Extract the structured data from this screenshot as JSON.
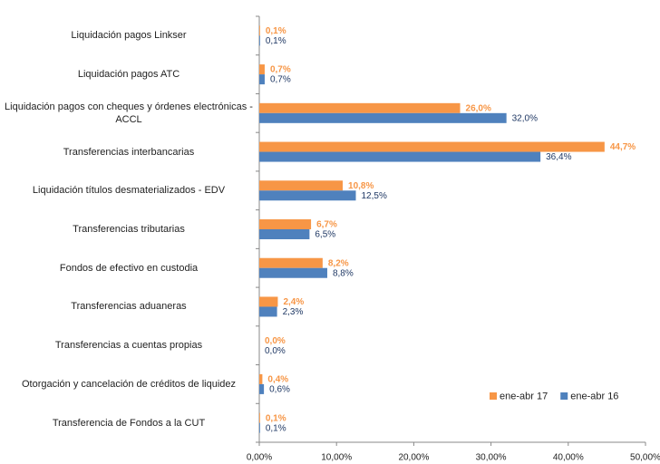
{
  "chart_data": {
    "type": "bar",
    "orientation": "horizontal",
    "categories": [
      "Liquidación pagos Linkser",
      "Liquidación pagos ATC",
      "Liquidación pagos con cheques y órdenes electrónicas - ACCL",
      "Transferencias interbancarias",
      "Liquidación títulos desmaterializados - EDV",
      "Transferencias tributarias",
      "Fondos de efectivo en custodia",
      "Transferencias aduaneras",
      "Transferencias a cuentas propias",
      "Otorgación y cancelación de créditos de liquidez",
      "Transferencia de Fondos a la CUT"
    ],
    "series": [
      {
        "name": "ene-abr 17",
        "color": "#f79646",
        "label_color": "#f79646",
        "values": [
          0.1,
          0.7,
          26.0,
          44.7,
          10.8,
          6.7,
          8.2,
          2.4,
          0.0,
          0.4,
          0.1
        ],
        "value_labels": [
          "0,1%",
          "0,7%",
          "26,0%",
          "44,7%",
          "10,8%",
          "6,7%",
          "8,2%",
          "2,4%",
          "0,0%",
          "0,4%",
          "0,1%"
        ]
      },
      {
        "name": "ene-abr 16",
        "color": "#4f81bd",
        "label_color": "#1f3864",
        "values": [
          0.1,
          0.7,
          32.0,
          36.4,
          12.5,
          6.5,
          8.8,
          2.3,
          0.0,
          0.6,
          0.1
        ],
        "value_labels": [
          "0,1%",
          "0,7%",
          "32,0%",
          "36,4%",
          "12,5%",
          "6,5%",
          "8,8%",
          "2,3%",
          "0,0%",
          "0,6%",
          "0,1%"
        ]
      }
    ],
    "xlim": [
      0,
      50
    ],
    "xticks": [
      {
        "value": 0,
        "label": "0,00%"
      },
      {
        "value": 10,
        "label": "10,00%"
      },
      {
        "value": 20,
        "label": "20,00%"
      },
      {
        "value": 30,
        "label": "30,00%"
      },
      {
        "value": 40,
        "label": "40,00%"
      },
      {
        "value": 50,
        "label": "50,00%"
      }
    ],
    "grid": false,
    "legend": "lower right"
  }
}
